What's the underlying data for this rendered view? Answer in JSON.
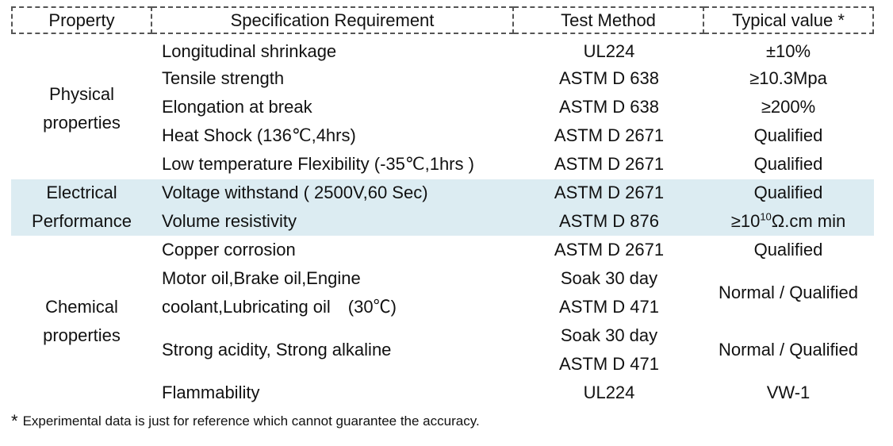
{
  "headers": {
    "property": "Property",
    "spec": "Specification Requirement",
    "method": "Test Method",
    "value": "Typical value *"
  },
  "groups": {
    "physical": {
      "line1": "Physical",
      "line2": "properties"
    },
    "electrical": {
      "line1": "Electrical",
      "line2": "Performance"
    },
    "chemical": {
      "line1": "Chemical",
      "line2": "properties"
    }
  },
  "rows": {
    "longitudinal_shrinkage": {
      "spec": "Longitudinal shrinkage",
      "method": "UL224",
      "value": "±10%"
    },
    "tensile_strength": {
      "spec": "Tensile strength",
      "method": "ASTM D 638",
      "value": "≥10.3Mpa"
    },
    "elongation": {
      "spec": "Elongation at break",
      "method": "ASTM D 638",
      "value": "≥200%"
    },
    "heat_shock": {
      "spec": "Heat Shock (136℃,4hrs)",
      "method": "ASTM D 2671",
      "value": "Qualified"
    },
    "low_temp": {
      "spec": "Low temperature Flexibility (-35℃,1hrs )",
      "method": "ASTM D 2671",
      "value": "Qualified"
    },
    "voltage": {
      "spec": "Voltage withstand ( 2500V,60 Sec)",
      "method": "ASTM D 2671",
      "value": "Qualified"
    },
    "volume_resistivity": {
      "spec": "Volume resistivity",
      "method": "ASTM D 876",
      "value_prefix": "≥10",
      "value_exp": "10",
      "value_suffix": "Ω.cm min"
    },
    "copper_corrosion": {
      "spec": "Copper corrosion",
      "method": "ASTM D 2671",
      "value": "Qualified"
    },
    "oils": {
      "spec_line1": "Motor oil,Brake oil,Engine",
      "spec_line2": "coolant,Lubricating oil　(30℃)",
      "method_line1": "Soak 30 day",
      "method_line2": "ASTM D 471",
      "value": "Normal / Qualified"
    },
    "acid_alkali": {
      "spec": "Strong acidity, Strong alkaline",
      "method_line1": "Soak 30 day",
      "method_line2": "ASTM D 471",
      "value": "Normal / Qualified"
    },
    "flammability": {
      "spec": "Flammability",
      "method": "UL224",
      "value": "VW-1"
    }
  },
  "footnote": {
    "star": "*",
    "text": "Experimental data is just for reference which cannot guarantee the accuracy."
  }
}
